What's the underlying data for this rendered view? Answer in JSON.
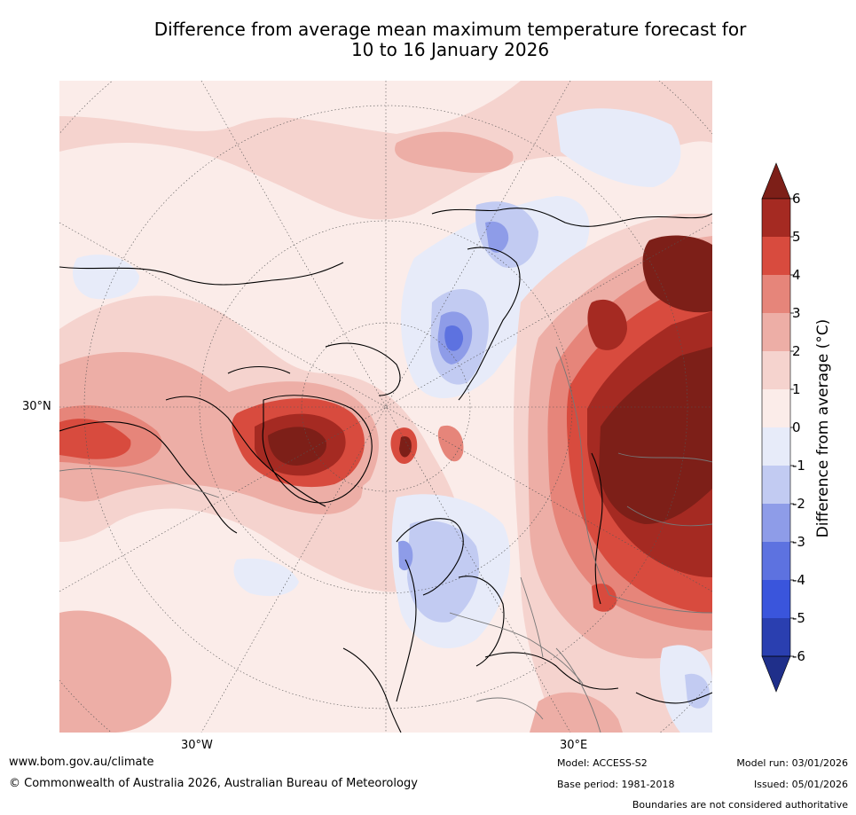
{
  "title_line1": "Difference from average mean maximum temperature forecast for",
  "title_line2": "10 to 16 January 2026",
  "labels": {
    "lat_30n": "30°N",
    "lon_30w": "30°W",
    "lon_30e": "30°E"
  },
  "colorbar": {
    "title": "Difference from average (°C)",
    "ticks": [
      "6",
      "5",
      "4",
      "3",
      "2",
      "1",
      "0",
      "-1",
      "-2",
      "-3",
      "-4",
      "-5",
      "-6"
    ],
    "colors": [
      "#7d1f18",
      "#a52a22",
      "#d84b3e",
      "#e6857a",
      "#edaea6",
      "#f5d3ce",
      "#fbece9",
      "#e7ebf9",
      "#c2cbf2",
      "#8e9ce8",
      "#5d72e0",
      "#3a55dc",
      "#2a3fb0",
      "#1f2f8a"
    ],
    "over_color": "#7d1f18",
    "under_color": "#1f2f8a"
  },
  "footer": {
    "url": "www.bom.gov.au/climate",
    "copyright": "© Commonwealth of Australia 2026, Australian Bureau of Meteorology",
    "model": "Model: ACCESS-S2",
    "base_period": "Base period: 1981-2018",
    "model_run": "Model run: 03/01/2026",
    "issued": "Issued: 05/01/2026",
    "disclaimer": "Boundaries are not considered authoritative"
  }
}
